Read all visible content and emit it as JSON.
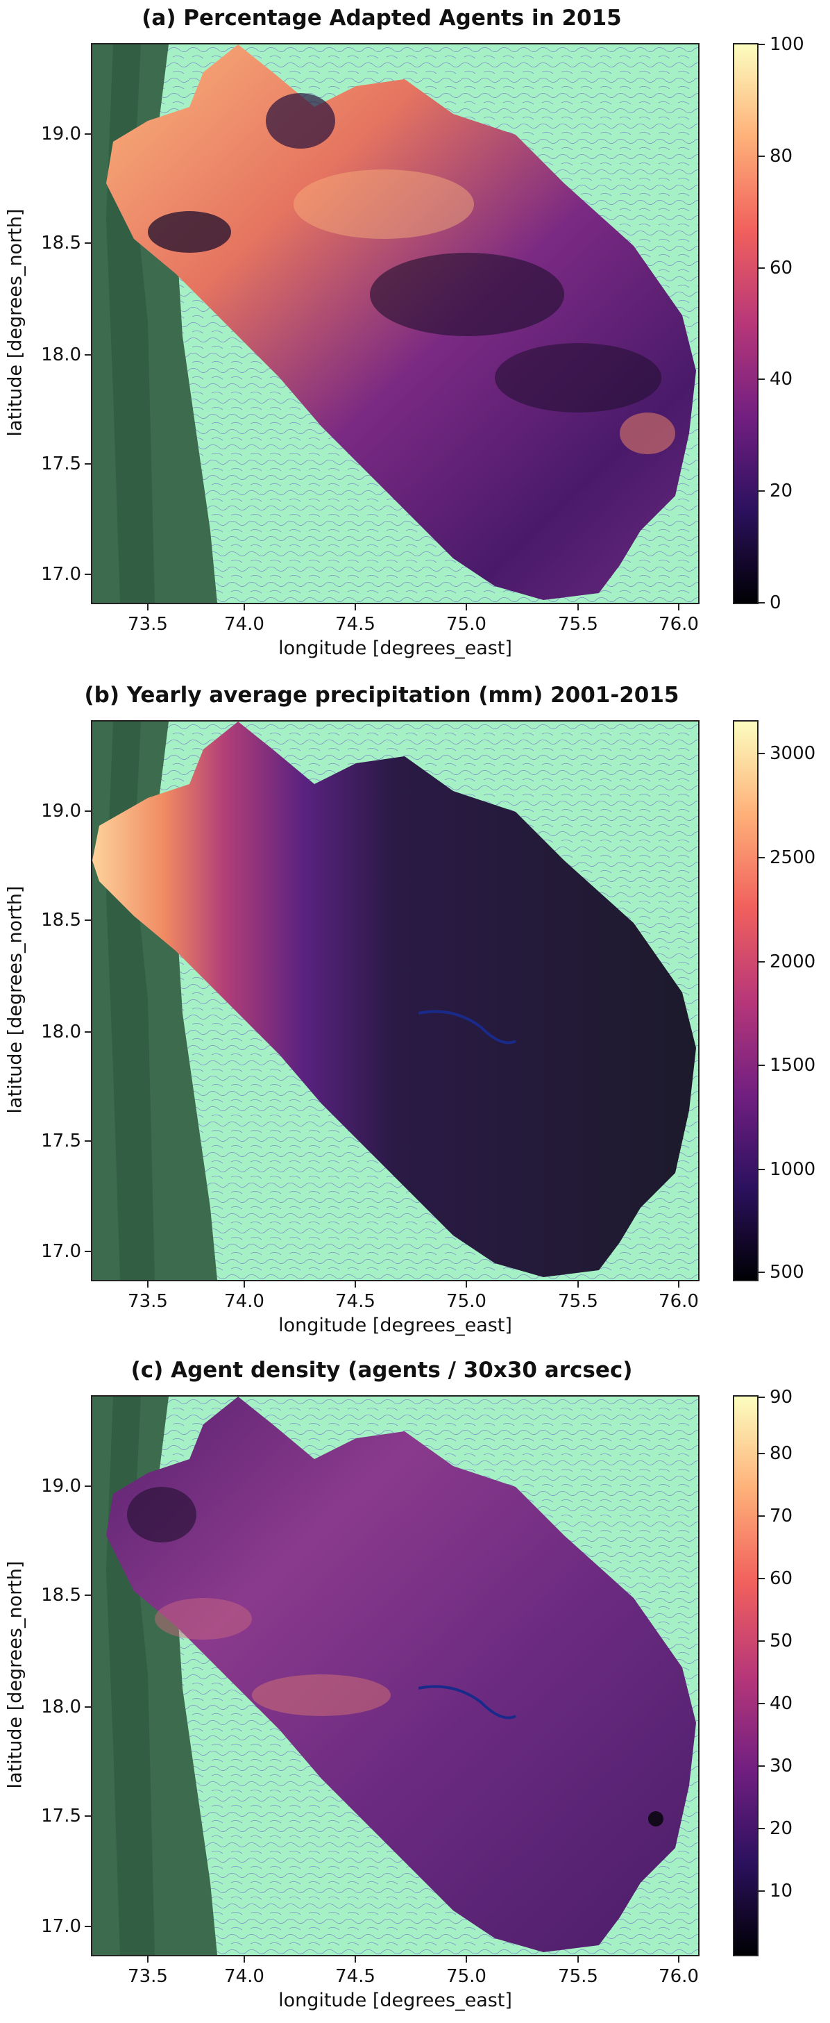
{
  "panels": [
    {
      "title": "(a) Percentage Adapted Agents in 2015",
      "cbar_ticks": [
        "100",
        "80",
        "60",
        "40",
        "20",
        "0"
      ],
      "cmap": [
        "#000004",
        "#2c115f",
        "#721f81",
        "#b73779",
        "#f1605d",
        "#feb078",
        "#fcfdbf"
      ]
    },
    {
      "title": "(b) Yearly average precipitation (mm) 2001-2015",
      "cbar_ticks": [
        "3000",
        "2500",
        "2000",
        "1500",
        "1000",
        "500"
      ],
      "cmap": [
        "#000004",
        "#2c115f",
        "#721f81",
        "#b73779",
        "#f1605d",
        "#feb078",
        "#fcfdbf"
      ]
    },
    {
      "title": "(c) Agent density (agents / 30x30 arcsec)",
      "cbar_ticks": [
        "90",
        "80",
        "70",
        "60",
        "50",
        "40",
        "30",
        "20",
        "10"
      ],
      "cmap": [
        "#000004",
        "#2c115f",
        "#721f81",
        "#b73779",
        "#f1605d",
        "#feb078",
        "#fcfdbf"
      ]
    }
  ],
  "axes": {
    "xlabel": "longitude [degrees_east]",
    "ylabel": "latitude [degrees_north]",
    "xticks": [
      "73.5",
      "74.0",
      "74.5",
      "75.0",
      "75.5",
      "76.0"
    ],
    "yticks": [
      "19.0",
      "18.5",
      "18.0",
      "17.5",
      "17.0"
    ]
  },
  "chart_data": [
    {
      "type": "heatmap",
      "title": "(a) Percentage Adapted Agents in 2015",
      "xlabel": "longitude [degrees_east]",
      "ylabel": "latitude [degrees_north]",
      "xlim": [
        73.35,
        76.1
      ],
      "ylim": [
        16.85,
        19.4
      ],
      "colorbar_range": [
        0,
        100
      ],
      "colormap": "magma"
    },
    {
      "type": "heatmap",
      "title": "(b) Yearly average precipitation (mm) 2001-2015",
      "xlabel": "longitude [degrees_east]",
      "ylabel": "latitude [degrees_north]",
      "xlim": [
        73.35,
        76.1
      ],
      "ylim": [
        16.85,
        19.4
      ],
      "colorbar_range": [
        450,
        3150
      ],
      "colormap": "magma"
    },
    {
      "type": "heatmap",
      "title": "(c) Agent density (agents / 30x30 arcsec)",
      "xlabel": "longitude [degrees_east]",
      "ylabel": "latitude [degrees_north]",
      "xlim": [
        73.35,
        76.1
      ],
      "ylim": [
        16.85,
        19.4
      ],
      "colorbar_range": [
        1,
        91
      ],
      "colormap": "magma"
    }
  ],
  "colors": {
    "background_land": "#a6f0c6",
    "hills": "#3d6b4e",
    "rivers": "#2a4cd6"
  }
}
